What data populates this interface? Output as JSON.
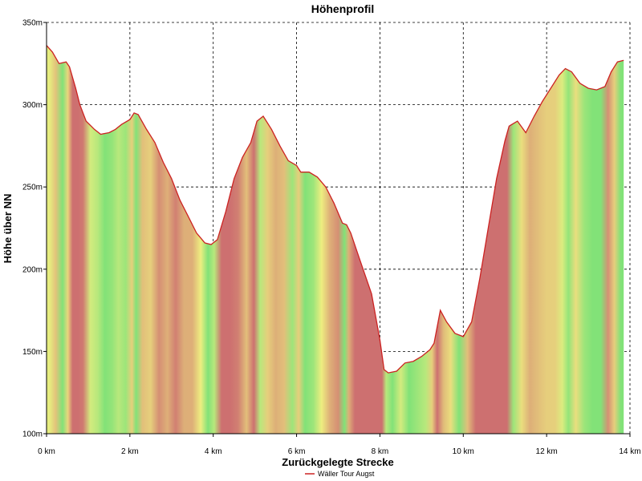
{
  "chart_data": {
    "type": "area",
    "title": "Höhenprofil",
    "xlabel": "Zurückgelegte Strecke",
    "ylabel": "Höhe über NN",
    "xlim": [
      0,
      14
    ],
    "ylim": [
      100,
      350
    ],
    "grid": true,
    "legend_placement": "bottom-center",
    "x_ticks": [
      {
        "value": 0,
        "label": "0 km"
      },
      {
        "value": 2,
        "label": "2 km"
      },
      {
        "value": 4,
        "label": "4 km"
      },
      {
        "value": 6,
        "label": "6 km"
      },
      {
        "value": 8,
        "label": "8 km"
      },
      {
        "value": 10,
        "label": "10 km"
      },
      {
        "value": 12,
        "label": "12 km"
      },
      {
        "value": 14,
        "label": "14 km"
      }
    ],
    "y_ticks": [
      {
        "value": 100,
        "label": "100m"
      },
      {
        "value": 150,
        "label": "150m"
      },
      {
        "value": 200,
        "label": "200m"
      },
      {
        "value": 250,
        "label": "250m"
      },
      {
        "value": 300,
        "label": "300m"
      },
      {
        "value": 350,
        "label": "350m"
      }
    ],
    "series": [
      {
        "name": "Wäller Tour Augst",
        "color": "#cc2222",
        "x": [
          0,
          0.14,
          0.3,
          0.47,
          0.55,
          0.7,
          0.8,
          0.95,
          1.15,
          1.3,
          1.5,
          1.65,
          1.8,
          2.0,
          2.1,
          2.2,
          2.4,
          2.6,
          2.8,
          3.0,
          3.2,
          3.4,
          3.6,
          3.8,
          3.95,
          4.1,
          4.3,
          4.5,
          4.7,
          4.9,
          5.05,
          5.2,
          5.4,
          5.6,
          5.8,
          6.0,
          6.1,
          6.3,
          6.5,
          6.7,
          6.9,
          7.1,
          7.2,
          7.3,
          7.5,
          7.8,
          8.0,
          8.1,
          8.2,
          8.4,
          8.6,
          8.8,
          9.0,
          9.2,
          9.3,
          9.45,
          9.6,
          9.8,
          10.0,
          10.2,
          10.4,
          10.6,
          10.8,
          11.0,
          11.1,
          11.3,
          11.5,
          11.7,
          11.9,
          12.1,
          12.3,
          12.45,
          12.6,
          12.8,
          13.0,
          13.2,
          13.4,
          13.55,
          13.7,
          13.85
        ],
        "y": [
          336,
          332,
          325,
          326,
          323,
          310,
          300,
          290,
          285,
          282,
          283,
          285,
          288,
          291,
          295,
          294,
          285,
          277,
          265,
          255,
          242,
          232,
          222,
          216,
          215,
          218,
          235,
          255,
          268,
          277,
          290,
          293,
          285,
          275,
          266,
          263,
          259,
          259,
          256,
          250,
          240,
          228,
          227,
          222,
          207,
          185,
          157,
          139,
          137,
          138,
          143,
          144,
          147,
          151,
          155,
          175,
          168,
          161,
          159,
          168,
          195,
          225,
          255,
          278,
          287,
          290,
          283,
          293,
          302,
          310,
          318,
          322,
          320,
          313,
          310,
          309,
          311,
          320,
          326,
          327
        ]
      }
    ]
  }
}
